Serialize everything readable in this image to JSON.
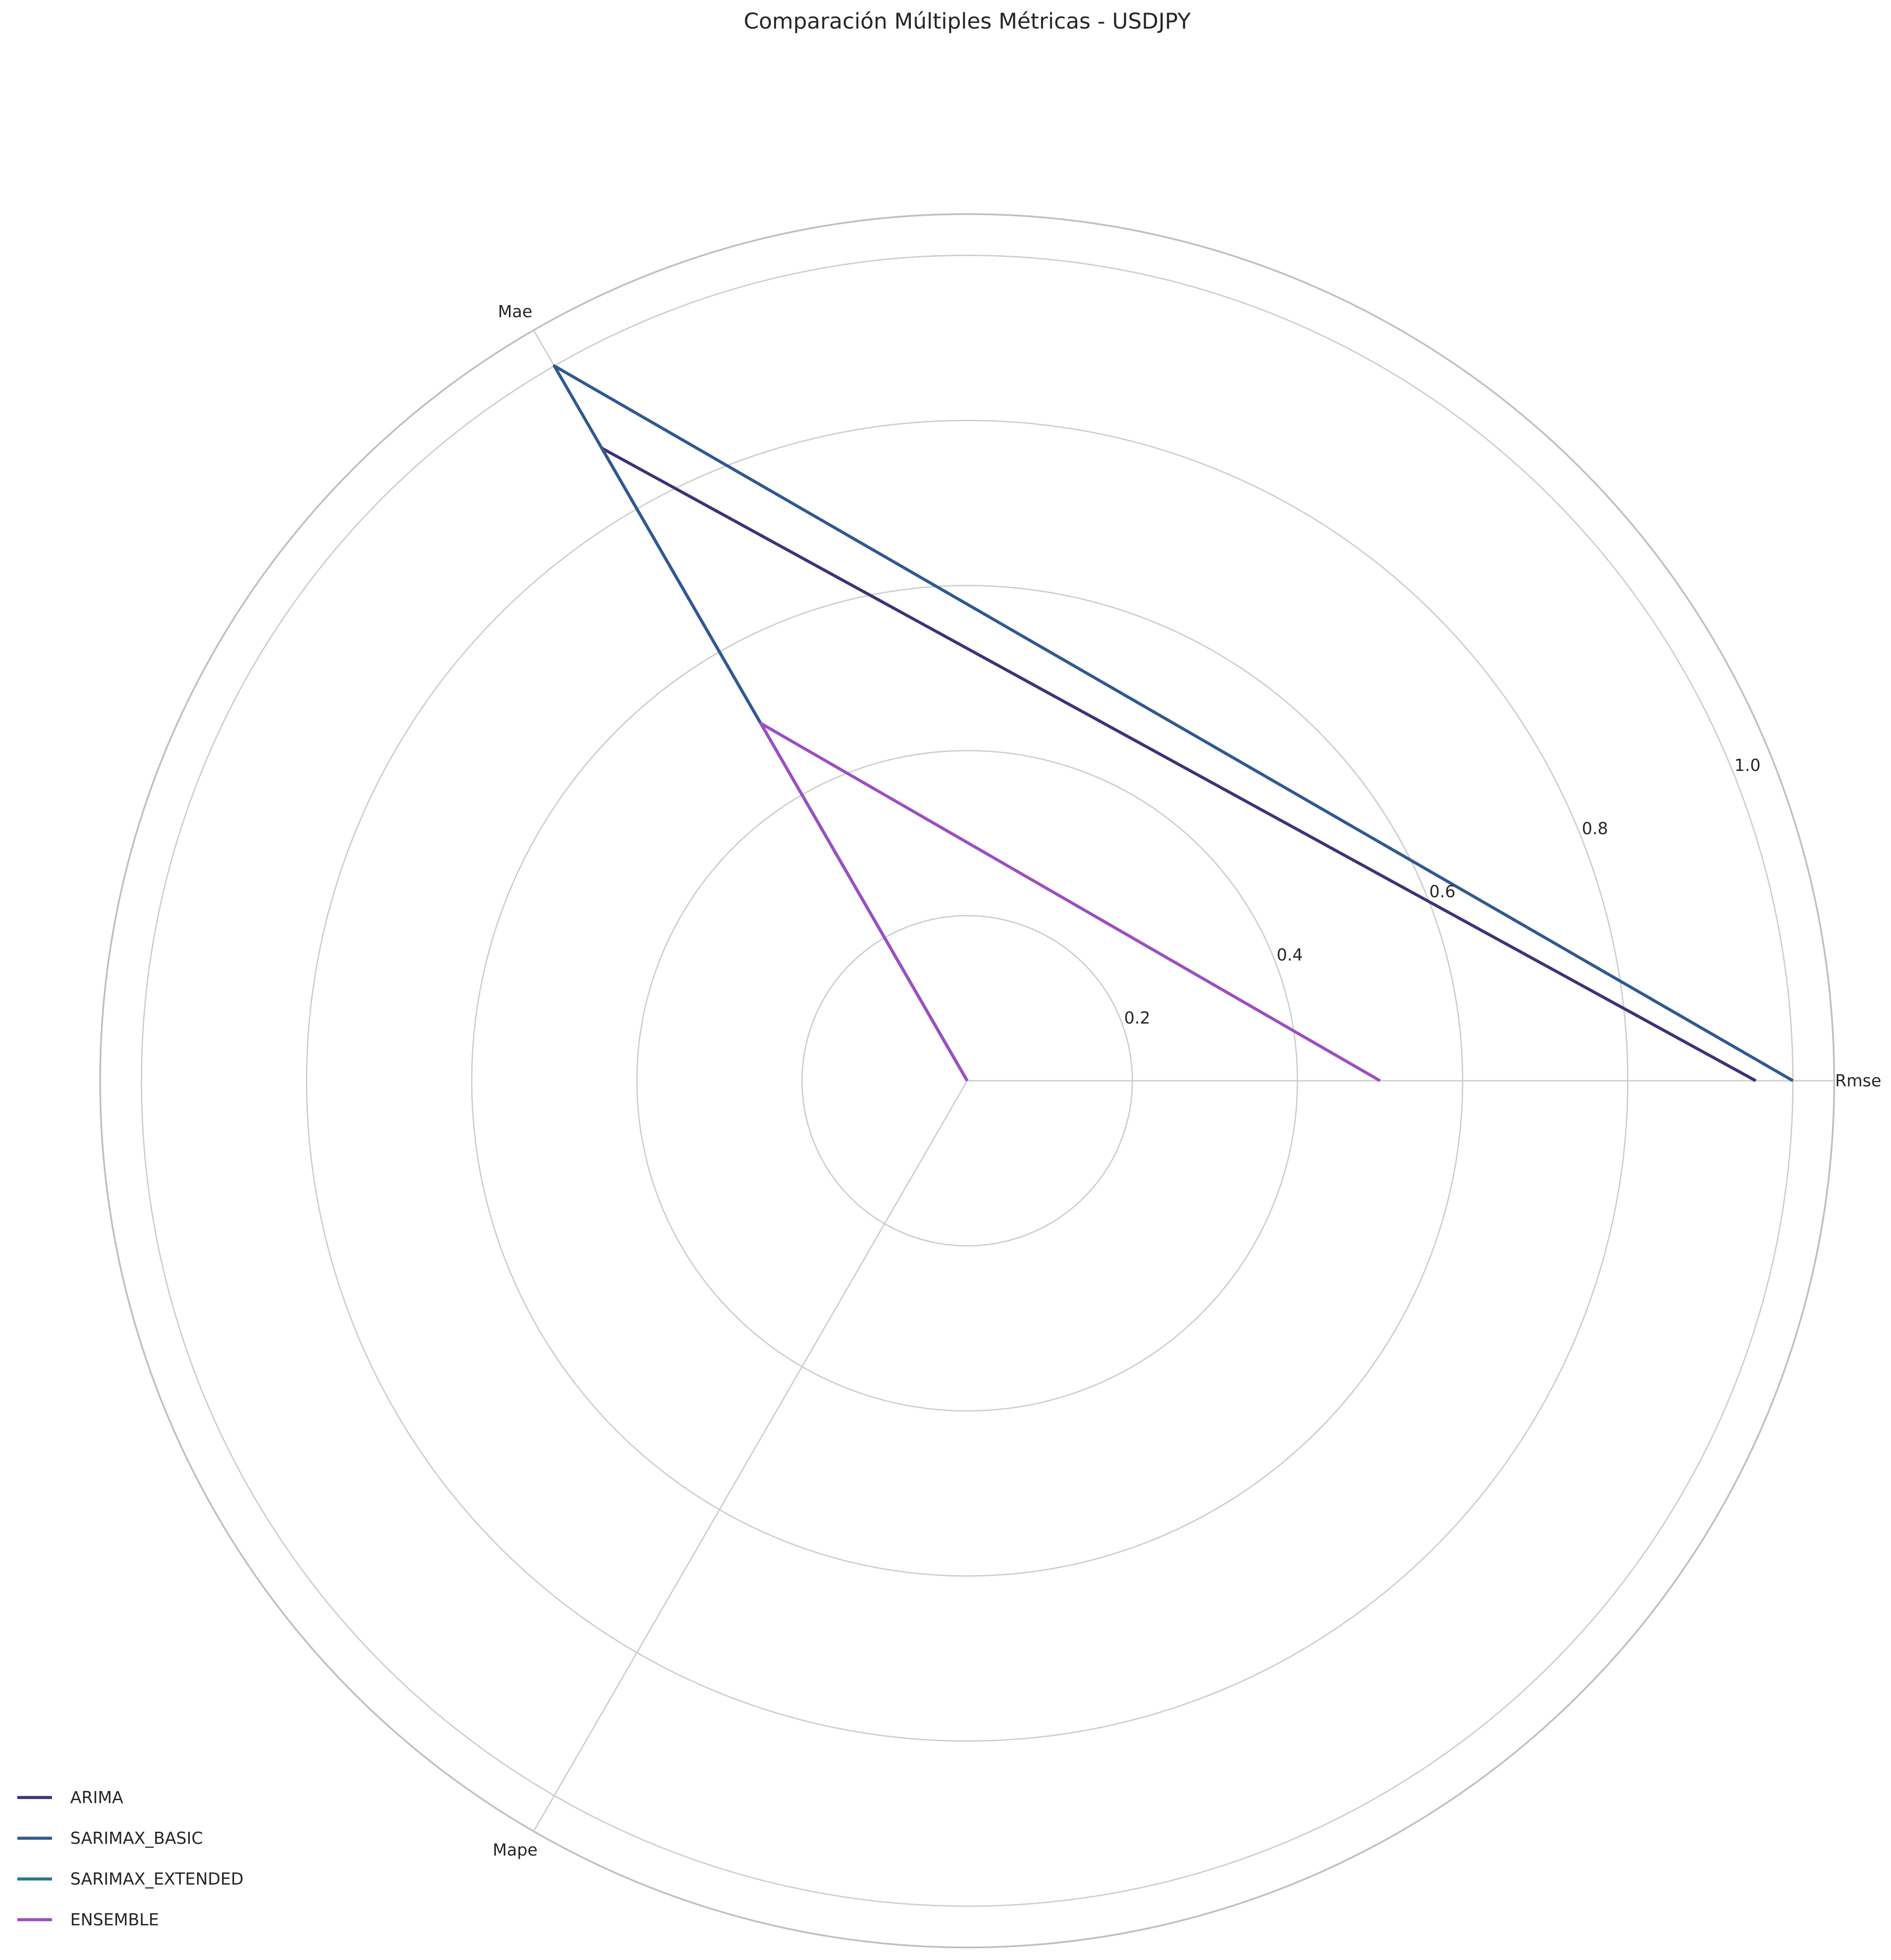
{
  "chart_data": {
    "type": "radar",
    "title": "Comparación Múltiples Métricas - USDJPY",
    "axes": [
      "Rmse",
      "Mae",
      "Mape"
    ],
    "radial_ticks": [
      "0.2",
      "0.4",
      "0.6",
      "0.8",
      "1.0"
    ],
    "radial_tick_values": [
      0.2,
      0.4,
      0.6,
      0.8,
      1.0
    ],
    "rlim": [
      0,
      1.05
    ],
    "grid": true,
    "legend_position": "lower-left",
    "series": [
      {
        "name": "ARIMA",
        "color": "#3f3279",
        "values": [
          0.955,
          0.885,
          0.0
        ]
      },
      {
        "name": "SARIMAX_BASIC",
        "color": "#2f5a8f",
        "values": [
          1.0,
          1.0,
          0.0
        ]
      },
      {
        "name": "SARIMAX_EXTENDED",
        "color": "#21798a",
        "values": [
          0.0,
          0.0,
          0.0
        ]
      },
      {
        "name": "ENSEMBLE",
        "color": "#9b4fc3",
        "values": [
          0.5,
          0.5,
          0.0
        ]
      }
    ]
  }
}
